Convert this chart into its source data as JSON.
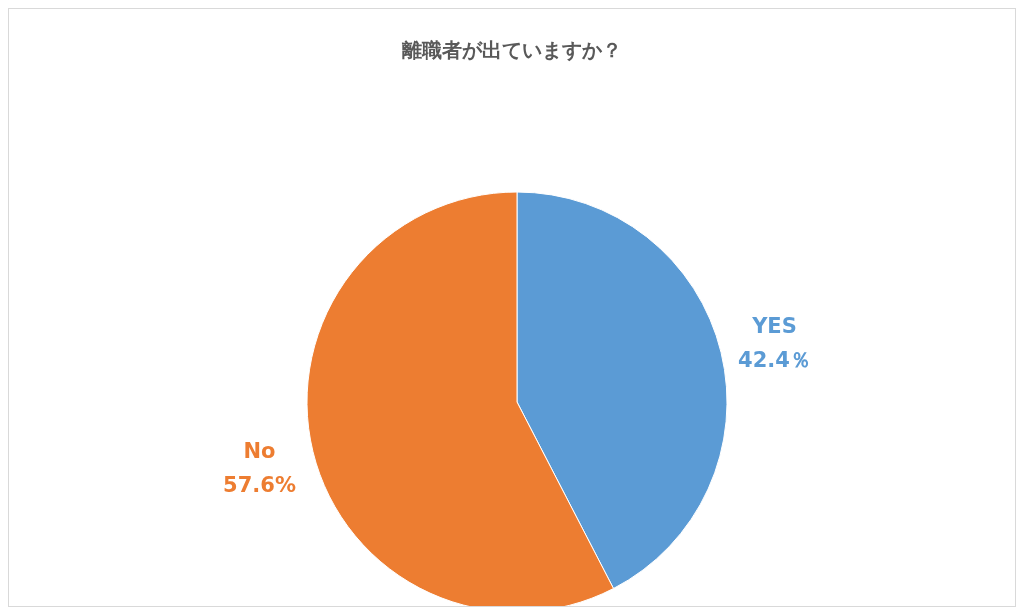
{
  "chart_data": {
    "type": "pie",
    "title": "離職者が出ていますか？",
    "categories": [
      "YES",
      "No"
    ],
    "values": [
      42.4,
      57.6
    ],
    "value_labels": [
      "42.4％",
      "57.6%"
    ],
    "colors": [
      "#5b9bd5",
      "#ed7d31"
    ],
    "legend": false
  }
}
